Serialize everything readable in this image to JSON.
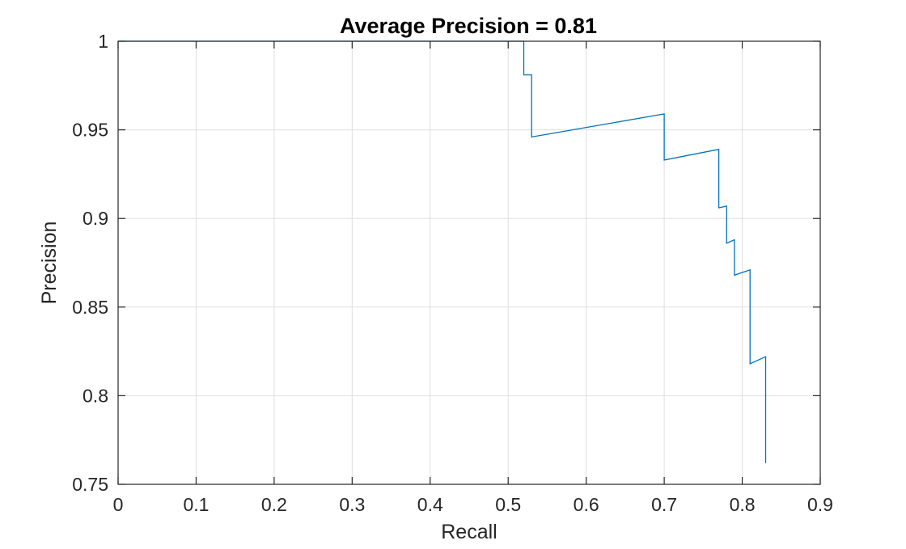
{
  "chart_data": {
    "type": "line",
    "title": "Average Precision = 0.81",
    "xlabel": "Recall",
    "ylabel": "Precision",
    "xlim": [
      0,
      0.9
    ],
    "ylim": [
      0.75,
      1
    ],
    "xticks": [
      0,
      0.1,
      0.2,
      0.3,
      0.4,
      0.5,
      0.6,
      0.7,
      0.8,
      0.9
    ],
    "xtick_labels": [
      "0",
      "0.1",
      "0.2",
      "0.3",
      "0.4",
      "0.5",
      "0.6",
      "0.7",
      "0.8",
      "0.9"
    ],
    "yticks": [
      0.75,
      0.8,
      0.85,
      0.9,
      0.95,
      1
    ],
    "ytick_labels": [
      "0.75",
      "0.8",
      "0.85",
      "0.9",
      "0.95",
      "1"
    ],
    "grid": true,
    "line_color": "#0072BD",
    "series": [
      {
        "x": [
          0,
          0.52,
          0.52,
          0.52,
          0.53,
          0.53,
          0.7,
          0.7,
          0.77,
          0.77,
          0.78,
          0.78,
          0.79,
          0.79,
          0.81,
          0.81,
          0.83,
          0.83
        ],
        "y": [
          1.0,
          1.0,
          0.981,
          0.981,
          0.981,
          0.946,
          0.959,
          0.933,
          0.939,
          0.906,
          0.907,
          0.886,
          0.888,
          0.868,
          0.871,
          0.818,
          0.822,
          0.762
        ]
      }
    ]
  }
}
